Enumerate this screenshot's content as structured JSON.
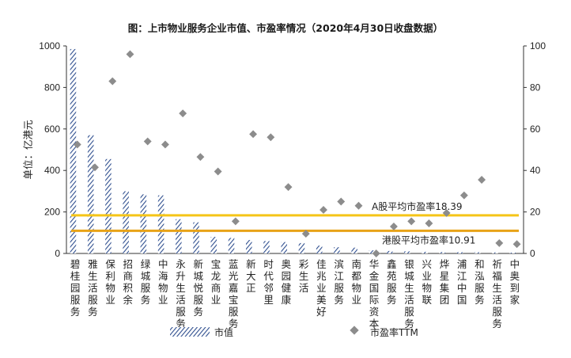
{
  "chart_data": {
    "type": "bar",
    "title": "图：上市物业服务企业市值、市盈率情况（2020年4月30日收盘数据）",
    "ylabel_left": "单位：亿港元",
    "ylim_left": [
      0,
      1000
    ],
    "yticks_left": [
      "0",
      "200",
      "400",
      "600",
      "800",
      "1000"
    ],
    "ylim_right": [
      0,
      100
    ],
    "yticks_right": [
      "0",
      "20",
      "40",
      "60",
      "80",
      "100"
    ],
    "categories": [
      "碧桂园服务",
      "雅生活服务",
      "保利物业",
      "招商积余",
      "绿城服务",
      "中海物业",
      "永升生活服务",
      "新城悦服务",
      "宝龙商业",
      "蓝光嘉宝服务",
      "新大正",
      "时代邻里",
      "奥园健康",
      "彩生活",
      "佳兆业美好",
      "滨江服务",
      "南都物业",
      "华金国际资本",
      "鑫苑服务",
      "银城生活服务",
      "兴业物联",
      "烨星集团",
      "浦江中国",
      "和泓服务",
      "祈福生活服务",
      "中奥到家"
    ],
    "series": [
      {
        "name": "市值",
        "kind": "bar",
        "axis": "left",
        "values": [
          985,
          570,
          455,
          300,
          285,
          280,
          165,
          150,
          80,
          75,
          65,
          60,
          55,
          50,
          38,
          30,
          28,
          15,
          12,
          10,
          8,
          7,
          6,
          6,
          5,
          4
        ]
      },
      {
        "name": "市盈率TTM",
        "kind": "scatter",
        "axis": "right",
        "values": [
          52.5,
          41.5,
          83,
          96,
          54,
          52.5,
          67.5,
          46.5,
          39.5,
          15.5,
          57.5,
          56,
          32,
          9.5,
          21,
          25,
          23,
          0,
          13,
          15.5,
          14.5,
          19.5,
          28,
          35.5,
          5,
          4.5
        ]
      }
    ],
    "reference_lines": [
      {
        "label": "A股平均市盈率18.39",
        "value": 18.39,
        "axis": "right",
        "color": "#f5c518"
      },
      {
        "label": "港股平均市盈率10.91",
        "value": 10.91,
        "axis": "right",
        "color": "#e8a317"
      }
    ],
    "legend": {
      "position": "bottom"
    }
  },
  "colors": {
    "bar": "#2f4f8f",
    "marker": "#8c8c8c",
    "a_line": "#f5c518",
    "hk_line": "#e8a317"
  }
}
